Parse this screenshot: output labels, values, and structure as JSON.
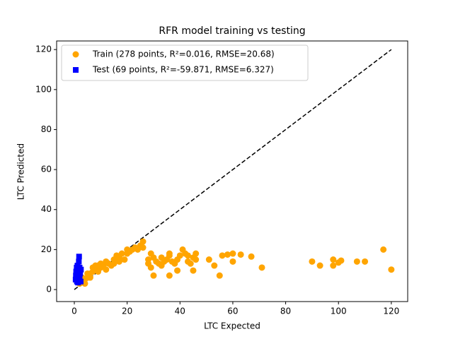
{
  "chart_data": {
    "type": "scatter",
    "title": "RFR model training vs testing",
    "xlabel": "LTC Expected",
    "ylabel": "LTC Predicted",
    "xlim": [
      -6.7,
      126.2
    ],
    "ylim": [
      -6,
      124.3
    ],
    "xticks": [
      0,
      20,
      40,
      60,
      80,
      100,
      120
    ],
    "yticks": [
      0,
      20,
      40,
      60,
      80,
      100,
      120
    ],
    "legend": "upper left",
    "reference_line": {
      "x": [
        0,
        120
      ],
      "y": [
        0,
        120
      ],
      "color": "#000000"
    },
    "series": [
      {
        "name": "Train (278 points, R²=0.016, RMSE=20.68)",
        "color": "#ffa500",
        "marker": "circle",
        "x": [
          3,
          4,
          5,
          6,
          7,
          7,
          8,
          8,
          9,
          10,
          10,
          11,
          12,
          12,
          13,
          14,
          15,
          15,
          16,
          17,
          17,
          18,
          19,
          20,
          20,
          21,
          22,
          23,
          24,
          25,
          26,
          26,
          2,
          3,
          5,
          9,
          6,
          4,
          28,
          28,
          29,
          29,
          30,
          30,
          31,
          32,
          33,
          33,
          34,
          35,
          36,
          36,
          36,
          37,
          38,
          39,
          39,
          40,
          41,
          42,
          43,
          43,
          44,
          45,
          45,
          46,
          46,
          51,
          53,
          55,
          56,
          58,
          60,
          60,
          63,
          67,
          71,
          90,
          93,
          98,
          98,
          100,
          101,
          107,
          110,
          117,
          120
        ],
        "values": [
          4,
          5,
          6,
          8,
          9,
          11,
          10,
          12,
          9,
          11,
          13,
          12,
          14,
          10,
          13,
          12,
          15,
          13,
          17,
          16,
          14,
          18,
          15,
          20,
          18,
          19,
          20,
          21,
          20,
          22,
          24,
          21,
          3,
          6,
          8,
          12,
          6,
          3,
          15,
          13,
          11,
          18,
          7,
          16,
          14,
          13,
          12,
          16,
          14,
          15,
          18,
          17,
          7,
          14,
          13,
          15,
          9.5,
          17,
          20,
          18,
          14,
          17,
          13,
          16,
          9.5,
          18,
          15,
          15,
          12,
          7,
          17,
          17.5,
          18,
          14,
          17.5,
          16.5,
          11,
          14,
          12,
          12,
          15,
          13.5,
          14.5,
          14,
          14,
          20,
          10
        ]
      },
      {
        "name": "Test (69 points, R²=-59.871, RMSE=6.327)",
        "color": "#0000ff",
        "marker": "square",
        "x": [
          0.5,
          0.6,
          0.7,
          0.8,
          1,
          1,
          1,
          1.2,
          1.3,
          1.5,
          1.6,
          1.7,
          1.8,
          2,
          2,
          2.2,
          2.4,
          2.5,
          1.4,
          0.9
        ],
        "values": [
          5,
          7,
          9,
          6,
          8,
          10,
          4,
          12,
          7,
          9,
          5,
          14,
          16.5,
          11,
          6,
          8,
          4,
          10,
          3.5,
          11
        ]
      }
    ]
  }
}
